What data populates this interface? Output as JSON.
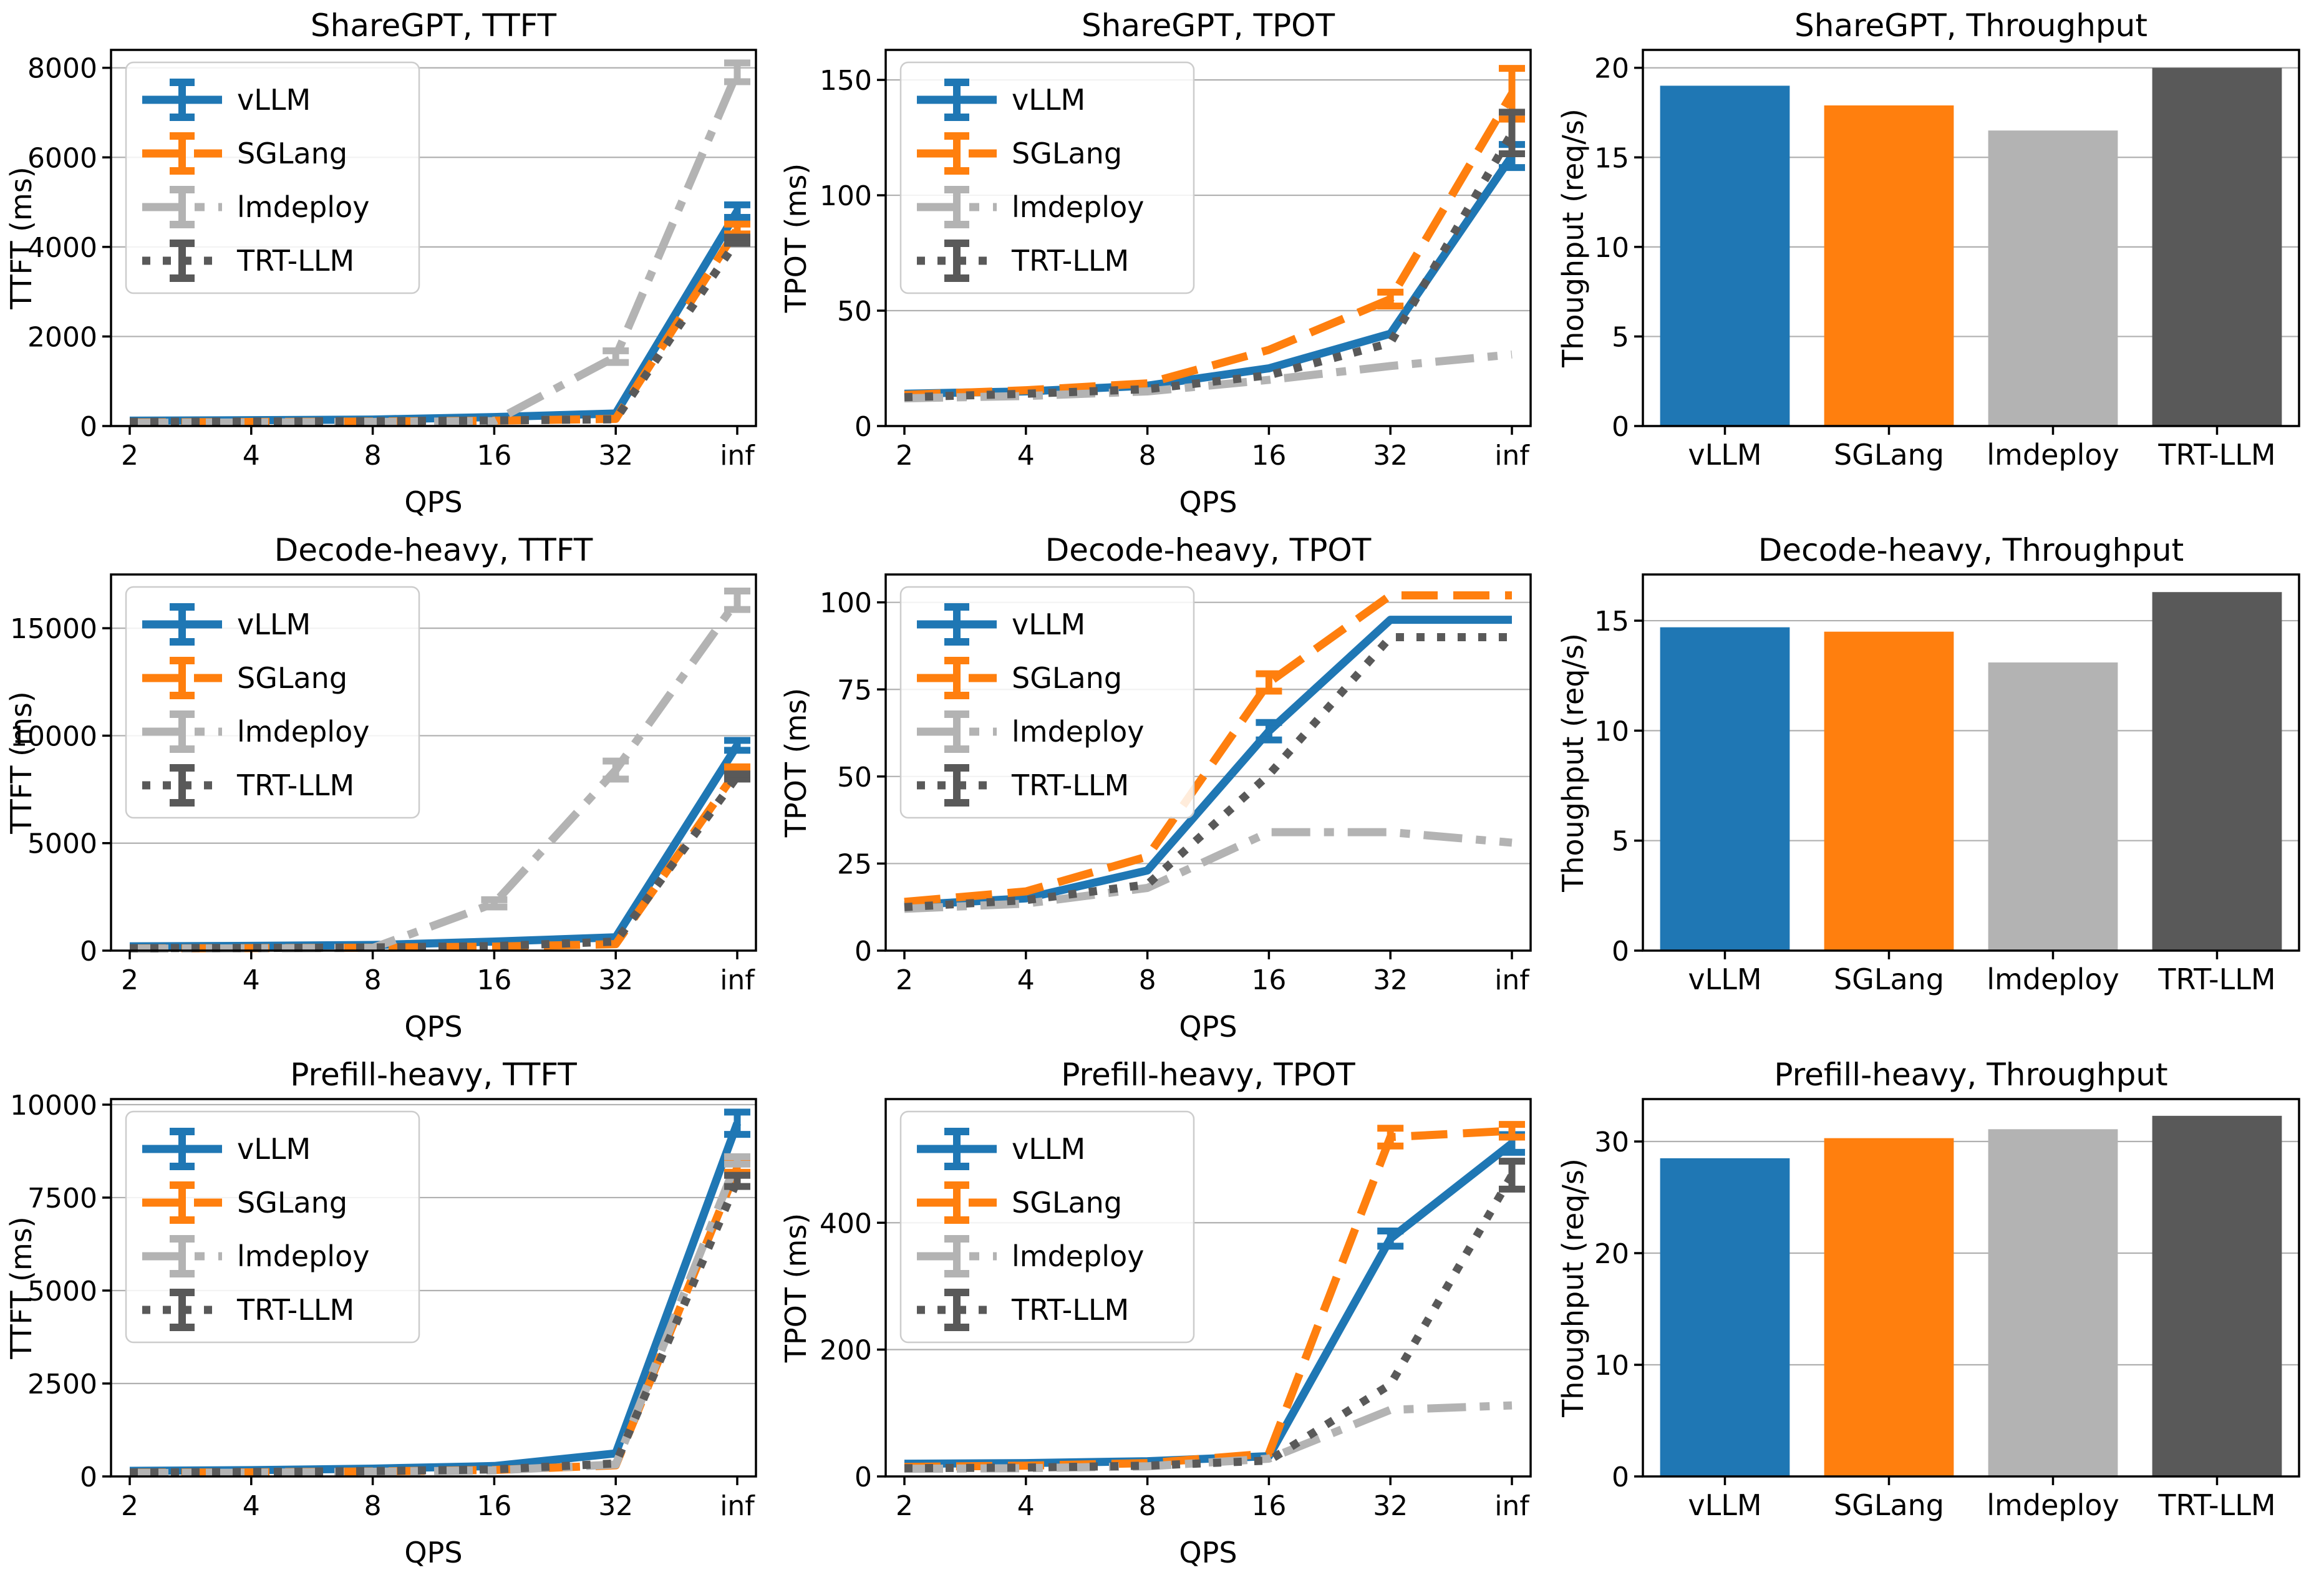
{
  "figure": {
    "background": "#ffffff",
    "grid_color": "#b0b0b0",
    "spine_color": "#000000",
    "legend_border_color": "#cccccc"
  },
  "colors": {
    "vLLM": "#1f77b4",
    "SGLang": "#ff7f0e",
    "lmdeploy": "#b3b3b3",
    "TRT-LLM": "#595959"
  },
  "legend": {
    "labels": [
      "vLLM",
      "SGLang",
      "lmdeploy",
      "TRT-LLM"
    ]
  },
  "chart_data": [
    {
      "id": "sharegpt-ttft",
      "type": "line",
      "title": "ShareGPT, TTFT",
      "xlabel": "QPS",
      "ylabel": "TTFT (ms)",
      "x": [
        "2",
        "4",
        "8",
        "16",
        "32",
        "inf"
      ],
      "ylim": [
        0,
        8400
      ],
      "yticks": [
        0,
        2000,
        4000,
        6000,
        8000
      ],
      "grid": true,
      "legend_position": "upper-left",
      "series": [
        {
          "name": "vLLM",
          "style": "solid",
          "values": [
            120,
            130,
            145,
            200,
            280,
            4800
          ],
          "err": {
            "5": 140
          }
        },
        {
          "name": "SGLang",
          "style": "dashed",
          "values": [
            80,
            90,
            100,
            120,
            160,
            4400
          ],
          "err": {
            "5": 110
          }
        },
        {
          "name": "lmdeploy",
          "style": "dashdot",
          "values": [
            70,
            80,
            90,
            110,
            1550,
            7900
          ],
          "err": {
            "4": 130,
            "5": 210
          }
        },
        {
          "name": "TRT-LLM",
          "style": "dotted",
          "values": [
            95,
            100,
            110,
            125,
            150,
            4150
          ],
          "err": {
            "5": 70
          }
        }
      ]
    },
    {
      "id": "sharegpt-tpot",
      "type": "line",
      "title": "ShareGPT, TPOT",
      "xlabel": "QPS",
      "ylabel": "TPOT (ms)",
      "x": [
        "2",
        "4",
        "8",
        "16",
        "32",
        "inf"
      ],
      "ylim": [
        0,
        163
      ],
      "yticks": [
        0,
        50,
        100,
        150
      ],
      "grid": true,
      "legend_position": "upper-left",
      "series": [
        {
          "name": "vLLM",
          "style": "solid",
          "values": [
            14,
            15,
            17.5,
            25,
            40,
            117
          ],
          "err": {
            "5": 5
          }
        },
        {
          "name": "SGLang",
          "style": "dashed",
          "values": [
            13.5,
            15.5,
            18.5,
            33,
            55,
            144
          ],
          "err": {
            "4": 3,
            "5": 11
          }
        },
        {
          "name": "lmdeploy",
          "style": "dashdot",
          "values": [
            12,
            13,
            15,
            20,
            26,
            31
          ],
          "err": {}
        },
        {
          "name": "TRT-LLM",
          "style": "dotted",
          "values": [
            12.5,
            14,
            16,
            22,
            36,
            127
          ],
          "err": {
            "5": 9
          }
        }
      ]
    },
    {
      "id": "sharegpt-throughput",
      "type": "bar",
      "title": "ShareGPT, Throughput",
      "xlabel": "",
      "ylabel": "Thoughput (req/s)",
      "categories": [
        "vLLM",
        "SGLang",
        "lmdeploy",
        "TRT-LLM"
      ],
      "values": [
        19.0,
        17.9,
        16.5,
        20.0
      ],
      "ylim": [
        0,
        21
      ],
      "yticks": [
        0,
        5,
        10,
        15,
        20
      ],
      "grid": true
    },
    {
      "id": "decode-heavy-ttft",
      "type": "line",
      "title": "Decode-heavy, TTFT",
      "xlabel": "QPS",
      "ylabel": "TTFT (ms)",
      "x": [
        "2",
        "4",
        "8",
        "16",
        "32",
        "inf"
      ],
      "ylim": [
        0,
        17500
      ],
      "yticks": [
        0,
        5000,
        10000,
        15000
      ],
      "grid": true,
      "legend_position": "upper-left",
      "series": [
        {
          "name": "vLLM",
          "style": "solid",
          "values": [
            200,
            220,
            260,
            420,
            620,
            9550
          ],
          "err": {
            "5": 230
          }
        },
        {
          "name": "SGLang",
          "style": "dashed",
          "values": [
            100,
            115,
            135,
            185,
            300,
            8400
          ],
          "err": {
            "5": 150
          }
        },
        {
          "name": "lmdeploy",
          "style": "dashdot",
          "values": [
            90,
            105,
            125,
            2200,
            8400,
            16300
          ],
          "err": {
            "3": 170,
            "4": 420,
            "5": 430
          }
        },
        {
          "name": "TRT-LLM",
          "style": "dotted",
          "values": [
            115,
            125,
            145,
            210,
            420,
            8100
          ],
          "err": {
            "5": 120
          }
        }
      ]
    },
    {
      "id": "decode-heavy-tpot",
      "type": "line",
      "title": "Decode-heavy, TPOT",
      "xlabel": "QPS",
      "ylabel": "TPOT (ms)",
      "x": [
        "2",
        "4",
        "8",
        "16",
        "32",
        "inf"
      ],
      "ylim": [
        0,
        108
      ],
      "yticks": [
        0,
        25,
        50,
        75,
        100
      ],
      "grid": true,
      "legend_position": "upper-left",
      "series": [
        {
          "name": "vLLM",
          "style": "solid",
          "values": [
            13,
            15,
            23,
            63,
            95,
            95
          ],
          "err": {
            "3": 2.5
          }
        },
        {
          "name": "SGLang",
          "style": "dashed",
          "values": [
            14,
            17,
            27,
            77,
            102,
            102
          ],
          "err": {
            "3": 2.5
          }
        },
        {
          "name": "lmdeploy",
          "style": "dashdot",
          "values": [
            12,
            13.5,
            18,
            34,
            34,
            31
          ],
          "err": {}
        },
        {
          "name": "TRT-LLM",
          "style": "dotted",
          "values": [
            12.5,
            14.5,
            19,
            50.5,
            90,
            90
          ],
          "err": {}
        }
      ]
    },
    {
      "id": "decode-heavy-throughput",
      "type": "bar",
      "title": "Decode-heavy, Throughput",
      "xlabel": "",
      "ylabel": "Thoughput (req/s)",
      "categories": [
        "vLLM",
        "SGLang",
        "lmdeploy",
        "TRT-LLM"
      ],
      "values": [
        14.7,
        14.5,
        13.1,
        16.3
      ],
      "ylim": [
        0,
        17.1
      ],
      "yticks": [
        0,
        5,
        10,
        15
      ],
      "grid": true
    },
    {
      "id": "prefill-heavy-ttft",
      "type": "line",
      "title": "Prefill-heavy, TTFT",
      "xlabel": "QPS",
      "ylabel": "TTFT (ms)",
      "x": [
        "2",
        "4",
        "8",
        "16",
        "32",
        "inf"
      ],
      "ylim": [
        0,
        10150
      ],
      "yticks": [
        0,
        2500,
        5000,
        7500,
        10000
      ],
      "grid": true,
      "legend_position": "upper-left",
      "series": [
        {
          "name": "vLLM",
          "style": "solid",
          "values": [
            150,
            170,
            210,
            280,
            620,
            9500
          ],
          "err": {
            "5": 300
          }
        },
        {
          "name": "SGLang",
          "style": "dashed",
          "values": [
            100,
            110,
            135,
            175,
            300,
            8300
          ],
          "err": {
            "5": 120
          }
        },
        {
          "name": "lmdeploy",
          "style": "dashdot",
          "values": [
            90,
            100,
            125,
            165,
            320,
            8500
          ],
          "err": {
            "5": 100
          }
        },
        {
          "name": "TRT-LLM",
          "style": "dotted",
          "values": [
            110,
            120,
            145,
            190,
            350,
            7950
          ],
          "err": {
            "5": 150
          }
        }
      ]
    },
    {
      "id": "prefill-heavy-tpot",
      "type": "line",
      "title": "Prefill-heavy, TPOT",
      "xlabel": "QPS",
      "ylabel": "TPOT (ms)",
      "x": [
        "2",
        "4",
        "8",
        "16",
        "32",
        "inf"
      ],
      "ylim": [
        0,
        595
      ],
      "yticks": [
        0,
        200,
        400
      ],
      "grid": true,
      "legend_position": "upper-left",
      "series": [
        {
          "name": "vLLM",
          "style": "solid",
          "values": [
            20,
            21,
            24,
            32,
            375,
            525
          ],
          "err": {
            "4": 12,
            "5": 14
          }
        },
        {
          "name": "SGLang",
          "style": "dashed",
          "values": [
            15,
            17,
            21,
            36,
            535,
            545
          ],
          "err": {
            "4": 14,
            "5": 10
          }
        },
        {
          "name": "lmdeploy",
          "style": "dashdot",
          "values": [
            12,
            13,
            16,
            28,
            105,
            112
          ],
          "err": {}
        },
        {
          "name": "TRT-LLM",
          "style": "dotted",
          "values": [
            13,
            14,
            17,
            25,
            145,
            475
          ],
          "err": {
            "5": 22
          }
        }
      ]
    },
    {
      "id": "prefill-heavy-throughput",
      "type": "bar",
      "title": "Prefill-heavy, Throughput",
      "xlabel": "",
      "ylabel": "Thoughput (req/s)",
      "categories": [
        "vLLM",
        "SGLang",
        "lmdeploy",
        "TRT-LLM"
      ],
      "values": [
        28.5,
        30.3,
        31.1,
        32.3
      ],
      "ylim": [
        0,
        33.8
      ],
      "yticks": [
        0,
        10,
        20,
        30
      ],
      "grid": true
    }
  ]
}
